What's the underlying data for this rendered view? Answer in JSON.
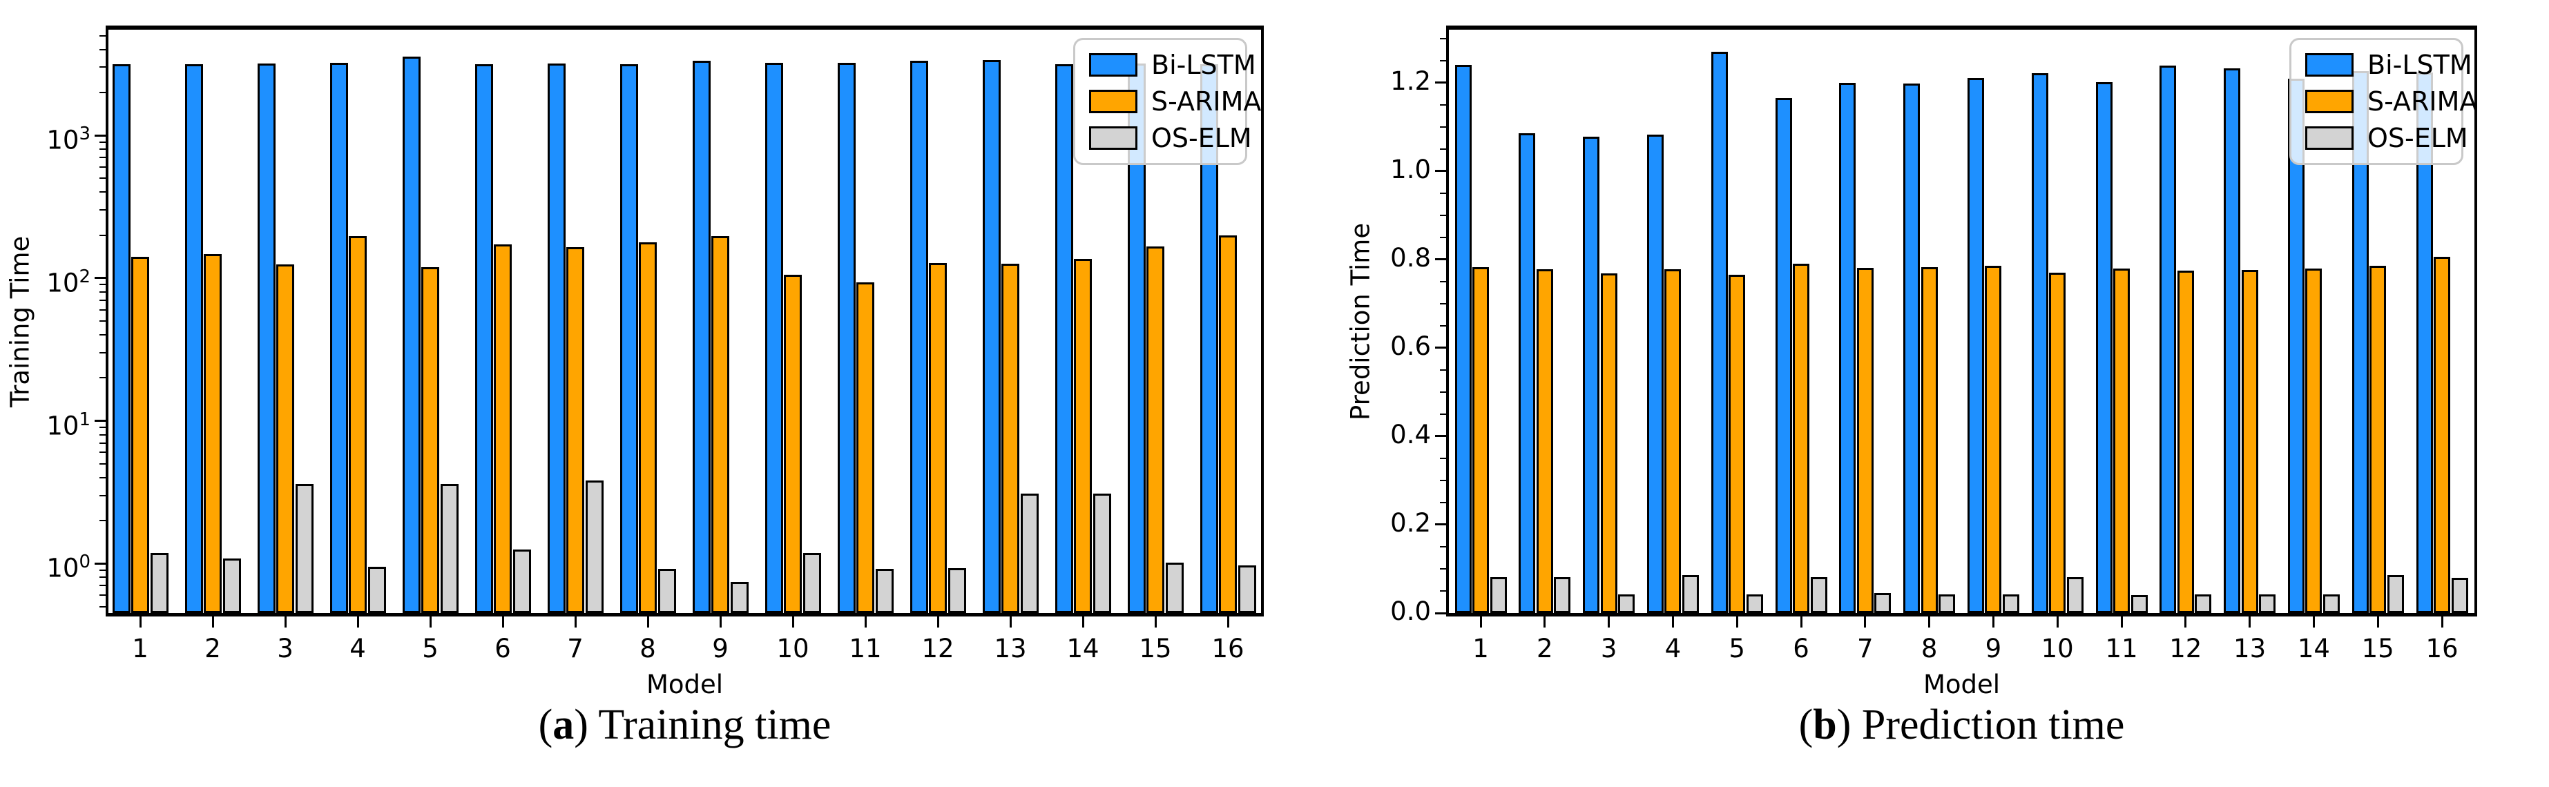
{
  "figure": {
    "background_color": "#ffffff",
    "bar_edge_color": "#000000",
    "legend_border_color": "#c9c9c9",
    "captions": [
      {
        "open": "(",
        "letter": "a",
        "close": ")",
        "text": "Training time"
      },
      {
        "open": "(",
        "letter": "b",
        "close": ")",
        "text": "Prediction time"
      }
    ]
  },
  "chart_data": [
    {
      "type": "bar",
      "title": "",
      "xlabel": "Model",
      "ylabel": "Training Time",
      "yscale": "log",
      "ylim": [
        0.45,
        5500
      ],
      "yticks_exponents": [
        0,
        1,
        2,
        3
      ],
      "grid": false,
      "legend_position": "upper right",
      "legend_entries": [
        "Bi-LSTM",
        "S-ARIMA",
        "OS-ELM"
      ],
      "categories": [
        1,
        2,
        3,
        4,
        5,
        6,
        7,
        8,
        9,
        10,
        11,
        12,
        13,
        14,
        15,
        16
      ],
      "series": [
        {
          "name": "Bi-LSTM",
          "color": "#1E90FF",
          "values": [
            3150,
            3140,
            3200,
            3230,
            3550,
            3150,
            3180,
            3150,
            3320,
            3230,
            3230,
            3320,
            3380,
            3150,
            3200,
            3150
          ]
        },
        {
          "name": "S-ARIMA",
          "color": "#FFA500",
          "values": [
            141,
            148,
            125,
            196,
            119,
            172,
            165,
            178,
            196,
            105,
            93,
            127,
            126,
            136,
            167,
            200
          ]
        },
        {
          "name": "OS-ELM",
          "color": "#D3D3D3",
          "values": [
            1.19,
            1.09,
            3.6,
            0.95,
            3.6,
            1.25,
            3.8,
            0.92,
            0.74,
            1.18,
            0.92,
            0.93,
            3.1,
            3.1,
            1.02,
            0.97
          ]
        }
      ]
    },
    {
      "type": "bar",
      "title": "",
      "xlabel": "Model",
      "ylabel": "Prediction Time",
      "yscale": "linear",
      "ylim": [
        0,
        1.32
      ],
      "yticks": [
        0.0,
        0.2,
        0.4,
        0.6,
        0.8,
        1.0,
        1.2
      ],
      "yminor_step": 0.05,
      "grid": false,
      "legend_position": "upper right",
      "legend_entries": [
        "Bi-LSTM",
        "S-ARIMA",
        "OS-ELM"
      ],
      "categories": [
        1,
        2,
        3,
        4,
        5,
        6,
        7,
        8,
        9,
        10,
        11,
        12,
        13,
        14,
        15,
        16
      ],
      "series": [
        {
          "name": "Bi-LSTM",
          "color": "#1E90FF",
          "values": [
            1.24,
            1.085,
            1.078,
            1.082,
            1.27,
            1.165,
            1.2,
            1.198,
            1.21,
            1.222,
            1.201,
            1.238,
            1.232,
            1.209,
            1.226,
            1.223
          ]
        },
        {
          "name": "S-ARIMA",
          "color": "#FFA500",
          "values": [
            0.782,
            0.778,
            0.768,
            0.778,
            0.765,
            0.79,
            0.781,
            0.782,
            0.786,
            0.77,
            0.78,
            0.775,
            0.776,
            0.78,
            0.786,
            0.806
          ]
        },
        {
          "name": "OS-ELM",
          "color": "#D3D3D3",
          "values": [
            0.082,
            0.082,
            0.042,
            0.086,
            0.042,
            0.082,
            0.046,
            0.042,
            0.042,
            0.081,
            0.041,
            0.042,
            0.042,
            0.042,
            0.086,
            0.08
          ]
        }
      ]
    }
  ]
}
